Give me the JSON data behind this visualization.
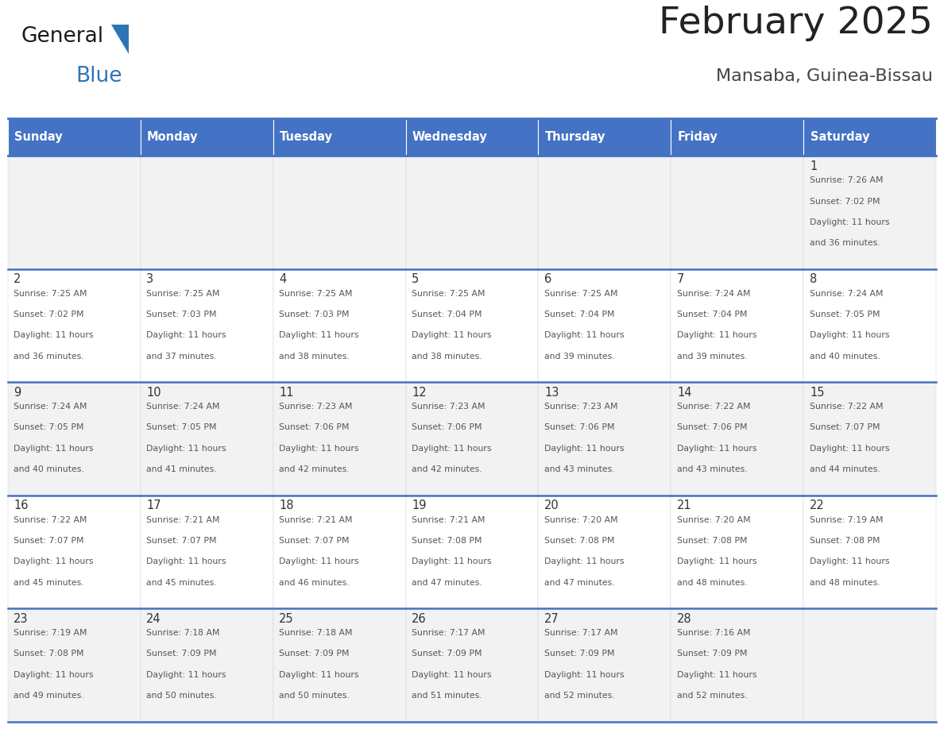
{
  "title": "February 2025",
  "subtitle": "Mansaba, Guinea-Bissau",
  "days_of_week": [
    "Sunday",
    "Monday",
    "Tuesday",
    "Wednesday",
    "Thursday",
    "Friday",
    "Saturday"
  ],
  "header_bg": "#4472C4",
  "header_text": "#FFFFFF",
  "row_bg_even": "#FFFFFF",
  "row_bg_odd": "#F2F2F2",
  "border_color": "#4472C4",
  "title_color": "#222222",
  "subtitle_color": "#444444",
  "day_num_color": "#333333",
  "cell_text_color": "#555555",
  "logo_blue_color": "#2E75B6",
  "logo_black_color": "#1A1A1A",
  "calendar_data": [
    [
      null,
      null,
      null,
      null,
      null,
      null,
      {
        "day": "1",
        "sunrise": "7:26 AM",
        "sunset": "7:02 PM",
        "daylight": "11 hours",
        "daylight2": "and 36 minutes."
      }
    ],
    [
      {
        "day": "2",
        "sunrise": "7:25 AM",
        "sunset": "7:02 PM",
        "daylight": "11 hours",
        "daylight2": "and 36 minutes."
      },
      {
        "day": "3",
        "sunrise": "7:25 AM",
        "sunset": "7:03 PM",
        "daylight": "11 hours",
        "daylight2": "and 37 minutes."
      },
      {
        "day": "4",
        "sunrise": "7:25 AM",
        "sunset": "7:03 PM",
        "daylight": "11 hours",
        "daylight2": "and 38 minutes."
      },
      {
        "day": "5",
        "sunrise": "7:25 AM",
        "sunset": "7:04 PM",
        "daylight": "11 hours",
        "daylight2": "and 38 minutes."
      },
      {
        "day": "6",
        "sunrise": "7:25 AM",
        "sunset": "7:04 PM",
        "daylight": "11 hours",
        "daylight2": "and 39 minutes."
      },
      {
        "day": "7",
        "sunrise": "7:24 AM",
        "sunset": "7:04 PM",
        "daylight": "11 hours",
        "daylight2": "and 39 minutes."
      },
      {
        "day": "8",
        "sunrise": "7:24 AM",
        "sunset": "7:05 PM",
        "daylight": "11 hours",
        "daylight2": "and 40 minutes."
      }
    ],
    [
      {
        "day": "9",
        "sunrise": "7:24 AM",
        "sunset": "7:05 PM",
        "daylight": "11 hours",
        "daylight2": "and 40 minutes."
      },
      {
        "day": "10",
        "sunrise": "7:24 AM",
        "sunset": "7:05 PM",
        "daylight": "11 hours",
        "daylight2": "and 41 minutes."
      },
      {
        "day": "11",
        "sunrise": "7:23 AM",
        "sunset": "7:06 PM",
        "daylight": "11 hours",
        "daylight2": "and 42 minutes."
      },
      {
        "day": "12",
        "sunrise": "7:23 AM",
        "sunset": "7:06 PM",
        "daylight": "11 hours",
        "daylight2": "and 42 minutes."
      },
      {
        "day": "13",
        "sunrise": "7:23 AM",
        "sunset": "7:06 PM",
        "daylight": "11 hours",
        "daylight2": "and 43 minutes."
      },
      {
        "day": "14",
        "sunrise": "7:22 AM",
        "sunset": "7:06 PM",
        "daylight": "11 hours",
        "daylight2": "and 43 minutes."
      },
      {
        "day": "15",
        "sunrise": "7:22 AM",
        "sunset": "7:07 PM",
        "daylight": "11 hours",
        "daylight2": "and 44 minutes."
      }
    ],
    [
      {
        "day": "16",
        "sunrise": "7:22 AM",
        "sunset": "7:07 PM",
        "daylight": "11 hours",
        "daylight2": "and 45 minutes."
      },
      {
        "day": "17",
        "sunrise": "7:21 AM",
        "sunset": "7:07 PM",
        "daylight": "11 hours",
        "daylight2": "and 45 minutes."
      },
      {
        "day": "18",
        "sunrise": "7:21 AM",
        "sunset": "7:07 PM",
        "daylight": "11 hours",
        "daylight2": "and 46 minutes."
      },
      {
        "day": "19",
        "sunrise": "7:21 AM",
        "sunset": "7:08 PM",
        "daylight": "11 hours",
        "daylight2": "and 47 minutes."
      },
      {
        "day": "20",
        "sunrise": "7:20 AM",
        "sunset": "7:08 PM",
        "daylight": "11 hours",
        "daylight2": "and 47 minutes."
      },
      {
        "day": "21",
        "sunrise": "7:20 AM",
        "sunset": "7:08 PM",
        "daylight": "11 hours",
        "daylight2": "and 48 minutes."
      },
      {
        "day": "22",
        "sunrise": "7:19 AM",
        "sunset": "7:08 PM",
        "daylight": "11 hours",
        "daylight2": "and 48 minutes."
      }
    ],
    [
      {
        "day": "23",
        "sunrise": "7:19 AM",
        "sunset": "7:08 PM",
        "daylight": "11 hours",
        "daylight2": "and 49 minutes."
      },
      {
        "day": "24",
        "sunrise": "7:18 AM",
        "sunset": "7:09 PM",
        "daylight": "11 hours",
        "daylight2": "and 50 minutes."
      },
      {
        "day": "25",
        "sunrise": "7:18 AM",
        "sunset": "7:09 PM",
        "daylight": "11 hours",
        "daylight2": "and 50 minutes."
      },
      {
        "day": "26",
        "sunrise": "7:17 AM",
        "sunset": "7:09 PM",
        "daylight": "11 hours",
        "daylight2": "and 51 minutes."
      },
      {
        "day": "27",
        "sunrise": "7:17 AM",
        "sunset": "7:09 PM",
        "daylight": "11 hours",
        "daylight2": "and 52 minutes."
      },
      {
        "day": "28",
        "sunrise": "7:16 AM",
        "sunset": "7:09 PM",
        "daylight": "11 hours",
        "daylight2": "and 52 minutes."
      },
      null
    ]
  ]
}
